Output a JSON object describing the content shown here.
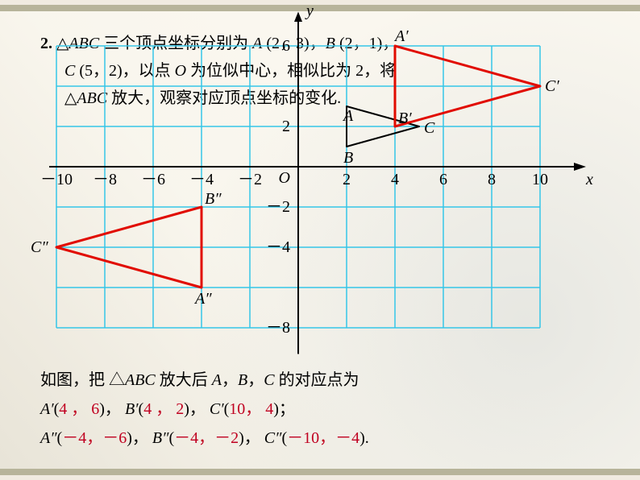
{
  "problem": {
    "number": "2.",
    "line1_a": "△",
    "line1_b": "ABC",
    "line1_c": " 三个顶点坐标分别为 ",
    "ptA_name": "A",
    "ptA": " (2，3)，",
    "ptB_name": "B",
    "ptB": " (2，1)，",
    "ptC_name": "C",
    "ptC": " (5，2)，以点 ",
    "ptO_name": "O",
    "line2_a": " 为位似中心，相似比为 2，将",
    "line3_a": "△",
    "line3_b": "ABC",
    "line3_c": " 放大，观察对应顶点坐标的变化."
  },
  "chart": {
    "grid_color": "#35c6e8",
    "axis_color": "#000000",
    "orig_tri_color": "#000000",
    "scaled_tri_color": "#e10b00",
    "bg_color": "transparent",
    "xlim": [
      -10,
      11
    ],
    "ylim": [
      -9,
      7
    ],
    "xticks_neg": [
      -10,
      -8,
      -6,
      -4,
      -2
    ],
    "xticks_pos": [
      2,
      4,
      6,
      8,
      10
    ],
    "yticks_pos_labels": [
      2,
      6
    ],
    "yticks_neg": [
      -2,
      -4,
      -8
    ],
    "grid_x": [
      -10,
      -8,
      -6,
      -4,
      -2,
      0,
      2,
      4,
      6,
      8,
      10
    ],
    "grid_y": [
      -8,
      -6,
      -4,
      -2,
      0,
      2,
      4,
      6
    ],
    "origin_label": "O",
    "x_axis_label": "x",
    "y_axis_label": "y",
    "triangles": {
      "orig": {
        "pts": [
          [
            2,
            3
          ],
          [
            2,
            1
          ],
          [
            5,
            2
          ]
        ],
        "labels": [
          "A",
          "B",
          "C"
        ],
        "stroke_w": 2
      },
      "prime": {
        "pts": [
          [
            4,
            6
          ],
          [
            4,
            2
          ],
          [
            10,
            4
          ]
        ],
        "labels": [
          "A′",
          "B′",
          "C′"
        ],
        "stroke_w": 3
      },
      "dprime": {
        "pts": [
          [
            -4,
            -6
          ],
          [
            -4,
            -2
          ],
          [
            -10,
            -4
          ]
        ],
        "labels": [
          "A″",
          "B″",
          "C″"
        ],
        "stroke_w": 3
      }
    }
  },
  "answer": {
    "line0_a": "如图，把 △",
    "line0_b": "ABC",
    "line0_c": " 放大后 ",
    "pA": "A",
    "sep1": "，",
    "pB": "B",
    "sep2": "，",
    "pC": "C",
    "line0_d": " 的对应点为",
    "A1n": "A′",
    "A1": "4 ， 6",
    "B1n": "B′",
    "B1": "4 ， 2",
    "C1n": "C′",
    "C1": "10， 4",
    "semi": "；",
    "A2n": "A″",
    "A2": "－4，－6",
    "B2n": "B″",
    "B2": "－4，－2",
    "C2n": "C″",
    "C2": "－10，－4",
    "period": "."
  }
}
